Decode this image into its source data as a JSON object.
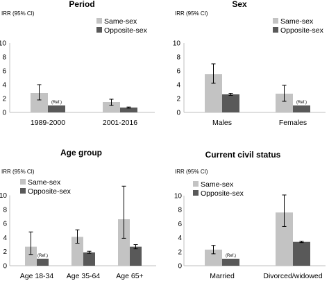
{
  "colors": {
    "same_sex": "#c3c3c3",
    "opposite_sex": "#595959",
    "axis": "#bfbfbf",
    "error_bar": "#000000"
  },
  "chart_data": [
    {
      "type": "bar",
      "title": "Period",
      "ylabel": "IRR (95% CI)",
      "ylim": [
        0,
        10
      ],
      "yticks": [
        "0",
        "2",
        "4",
        "6",
        "8",
        "10"
      ],
      "categories": [
        "1989-2000",
        "2001-2016"
      ],
      "legend": "top-right",
      "series": [
        {
          "name": "Same-sex",
          "values": [
            2.8,
            1.5
          ],
          "ci_low": [
            1.8,
            1.0
          ],
          "ci_high": [
            4.0,
            1.9
          ]
        },
        {
          "name": "Opposite-sex",
          "values": [
            1.0,
            0.7
          ],
          "ci_low": [
            1.0,
            0.62
          ],
          "ci_high": [
            1.0,
            0.78
          ]
        }
      ],
      "annotations": [
        {
          "text": "(Ref.)",
          "category": 0,
          "series": 1
        }
      ]
    },
    {
      "type": "bar",
      "title": "Sex",
      "ylabel": "IRR (95% CI)",
      "ylim": [
        0,
        10
      ],
      "yticks": [
        "0",
        "2",
        "4",
        "6",
        "8",
        "10"
      ],
      "categories": [
        "Males",
        "Females"
      ],
      "legend": "top-right",
      "series": [
        {
          "name": "Same-sex",
          "values": [
            5.5,
            2.7
          ],
          "ci_low": [
            4.2,
            1.6
          ],
          "ci_high": [
            7.0,
            3.9
          ]
        },
        {
          "name": "Opposite-sex",
          "values": [
            2.6,
            1.0
          ],
          "ci_low": [
            2.45,
            1.0
          ],
          "ci_high": [
            2.75,
            1.0
          ]
        }
      ],
      "annotations": [
        {
          "text": "(Ref.)",
          "category": 1,
          "series": 1
        }
      ]
    },
    {
      "type": "bar",
      "title": "Age group",
      "ylabel": "IRR (95% CI)",
      "ylim": [
        0,
        12
      ],
      "yticks": [
        "0",
        "2",
        "4",
        "6",
        "8",
        "10"
      ],
      "categories": [
        "Age 18-34",
        "Age 35-64",
        "Age 65+"
      ],
      "legend": "top-left",
      "series": [
        {
          "name": "Same-sex",
          "values": [
            2.7,
            4.1,
            6.6
          ],
          "ci_low": [
            1.6,
            3.2,
            3.9
          ],
          "ci_high": [
            4.8,
            5.1,
            11.3
          ]
        },
        {
          "name": "Opposite-sex",
          "values": [
            1.0,
            1.9,
            2.7
          ],
          "ci_low": [
            1.0,
            1.75,
            2.4
          ],
          "ci_high": [
            1.0,
            2.05,
            3.0
          ]
        }
      ],
      "annotations": [
        {
          "text": "(Ref.)",
          "category": 0,
          "series": 1
        }
      ]
    },
    {
      "type": "bar",
      "title": "Current civil status",
      "ylabel": "IRR (95% CI)",
      "ylim": [
        0,
        10
      ],
      "yticks": [
        "0",
        "2",
        "4",
        "6",
        "8",
        "10"
      ],
      "categories": [
        "Married",
        "Divorced/widowed"
      ],
      "legend": "top-right",
      "series": [
        {
          "name": "Same-sex",
          "values": [
            2.3,
            7.6
          ],
          "ci_low": [
            1.7,
            5.6
          ],
          "ci_high": [
            2.9,
            10.1
          ]
        },
        {
          "name": "Opposite-sex",
          "values": [
            1.0,
            3.4
          ],
          "ci_low": [
            1.0,
            3.3
          ],
          "ci_high": [
            1.0,
            3.5
          ]
        }
      ],
      "annotations": [
        {
          "text": "(Ref.)",
          "category": 0,
          "series": 1
        }
      ]
    }
  ]
}
